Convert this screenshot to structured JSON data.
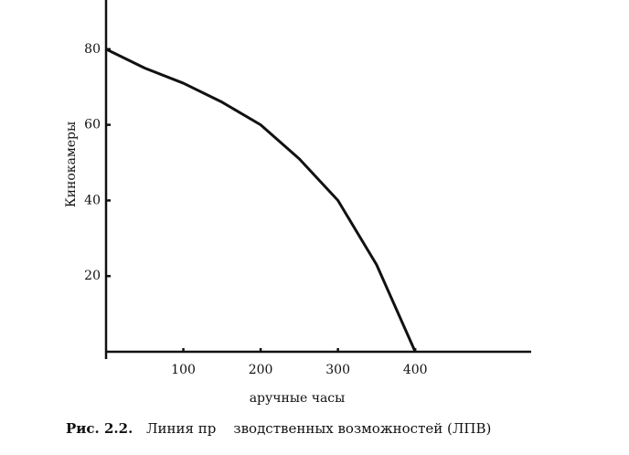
{
  "chart_data": {
    "type": "line",
    "y_label": "Кинокамеры",
    "x_label": "аручные часы",
    "caption_label": "Рис. 2.2.",
    "caption": "Линия пр    зводственных возможностей (ЛПВ)",
    "x": [
      0,
      50,
      100,
      150,
      200,
      250,
      300,
      350,
      400
    ],
    "series": [
      {
        "name": "ЛПВ",
        "color": "#111111",
        "values": [
          80,
          75,
          71,
          66,
          60,
          51,
          40,
          23,
          0
        ]
      }
    ],
    "xlim": [
      0,
      550
    ],
    "ylim": [
      0,
      93
    ],
    "xticks": [
      100,
      200,
      300,
      400
    ],
    "yticks": [
      20,
      40,
      60,
      80
    ]
  }
}
